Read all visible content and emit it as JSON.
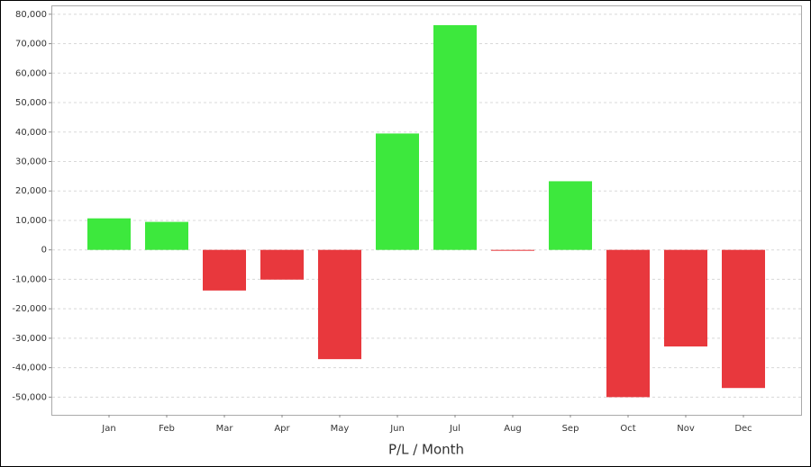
{
  "chart_data": {
    "type": "bar",
    "x_label": "P/L / Month",
    "categories": [
      "Jan",
      "Feb",
      "Mar",
      "Apr",
      "May",
      "Jun",
      "Jul",
      "Aug",
      "Sep",
      "Oct",
      "Nov",
      "Dec"
    ],
    "values": [
      10700,
      9500,
      -13800,
      -10100,
      -37100,
      39500,
      76300,
      -300,
      23300,
      -50000,
      -32800,
      -46900
    ],
    "positive_color": "#3de83d",
    "negative_color": "#e8383d",
    "ylim": [
      -56000,
      83000
    ],
    "yticks": [
      {
        "value": -50000,
        "label": "-50,000"
      },
      {
        "value": -40000,
        "label": "-40,000"
      },
      {
        "value": -30000,
        "label": "-30,000"
      },
      {
        "value": -20000,
        "label": "-20,000"
      },
      {
        "value": -10000,
        "label": "-10,000"
      },
      0,
      {
        "value": 10000,
        "label": "10,000"
      },
      {
        "value": 20000,
        "label": "20,000"
      },
      {
        "value": 30000,
        "label": "30,000"
      },
      {
        "value": 40000,
        "label": "40,000"
      },
      {
        "value": 50000,
        "label": "50,000"
      },
      {
        "value": 60000,
        "label": "60,000"
      },
      {
        "value": 70000,
        "label": "70,000"
      },
      {
        "value": 80000,
        "label": "80,000"
      }
    ],
    "grid": true
  }
}
